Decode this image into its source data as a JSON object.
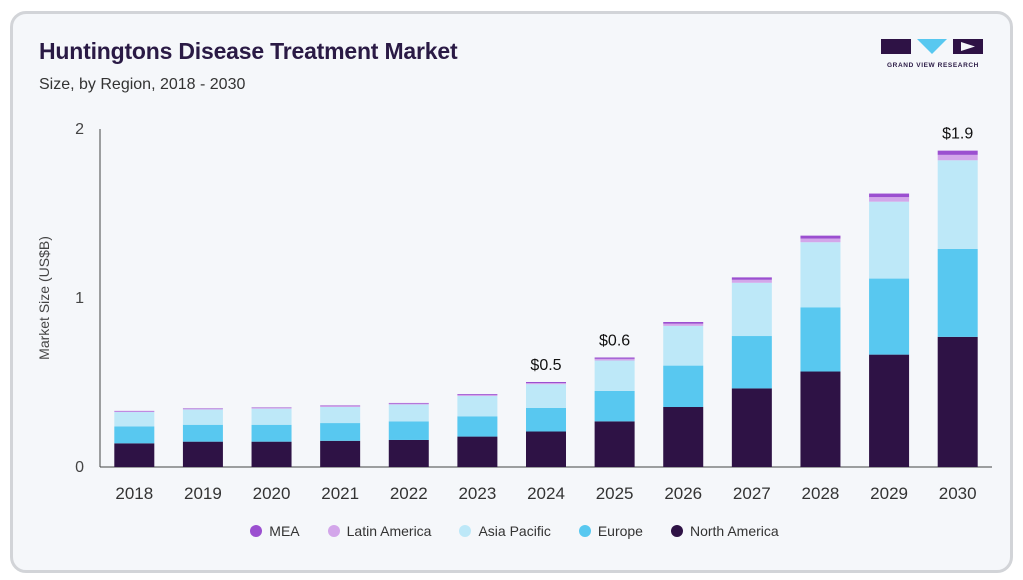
{
  "header": {
    "title": "Huntingtons Disease Treatment Market",
    "subtitle": "Size, by Region, 2018 - 2030",
    "logo_text": "GRAND VIEW RESEARCH"
  },
  "colors": {
    "MEA": "#9b4fd0",
    "Latin America": "#d3a6ea",
    "Asia Pacific": "#bde8f8",
    "Europe": "#58c8f0",
    "North America": "#2e1245"
  },
  "chart_data": {
    "type": "bar",
    "stacked": true,
    "title": "Huntingtons Disease Treatment Market",
    "subtitle": "Size, by Region, 2018 - 2030",
    "xlabel": "",
    "ylabel": "Market Size (US$B)",
    "ylim": [
      0,
      2
    ],
    "yticks": [
      "0",
      "1",
      "2"
    ],
    "grid": false,
    "legend_position": "bottom",
    "categories": [
      "2018",
      "2019",
      "2020",
      "2021",
      "2022",
      "2023",
      "2024",
      "2025",
      "2026",
      "2027",
      "2028",
      "2029",
      "2030"
    ],
    "series": [
      {
        "name": "North America",
        "values": [
          0.14,
          0.15,
          0.15,
          0.155,
          0.16,
          0.18,
          0.21,
          0.27,
          0.355,
          0.465,
          0.565,
          0.665,
          0.77
        ]
      },
      {
        "name": "Europe",
        "values": [
          0.1,
          0.1,
          0.1,
          0.105,
          0.11,
          0.12,
          0.14,
          0.18,
          0.245,
          0.31,
          0.38,
          0.45,
          0.52
        ]
      },
      {
        "name": "Asia Pacific",
        "values": [
          0.085,
          0.09,
          0.095,
          0.095,
          0.1,
          0.12,
          0.14,
          0.18,
          0.235,
          0.315,
          0.385,
          0.455,
          0.525
        ]
      },
      {
        "name": "Latin America",
        "values": [
          0.004,
          0.004,
          0.004,
          0.005,
          0.005,
          0.006,
          0.007,
          0.01,
          0.013,
          0.018,
          0.022,
          0.027,
          0.032
        ]
      },
      {
        "name": "MEA",
        "values": [
          0.003,
          0.003,
          0.003,
          0.004,
          0.004,
          0.005,
          0.006,
          0.008,
          0.01,
          0.014,
          0.017,
          0.021,
          0.025
        ]
      }
    ],
    "data_labels": [
      {
        "category": "2024",
        "text": "$0.5"
      },
      {
        "category": "2025",
        "text": "$0.6"
      },
      {
        "category": "2030",
        "text": "$1.9"
      }
    ]
  }
}
